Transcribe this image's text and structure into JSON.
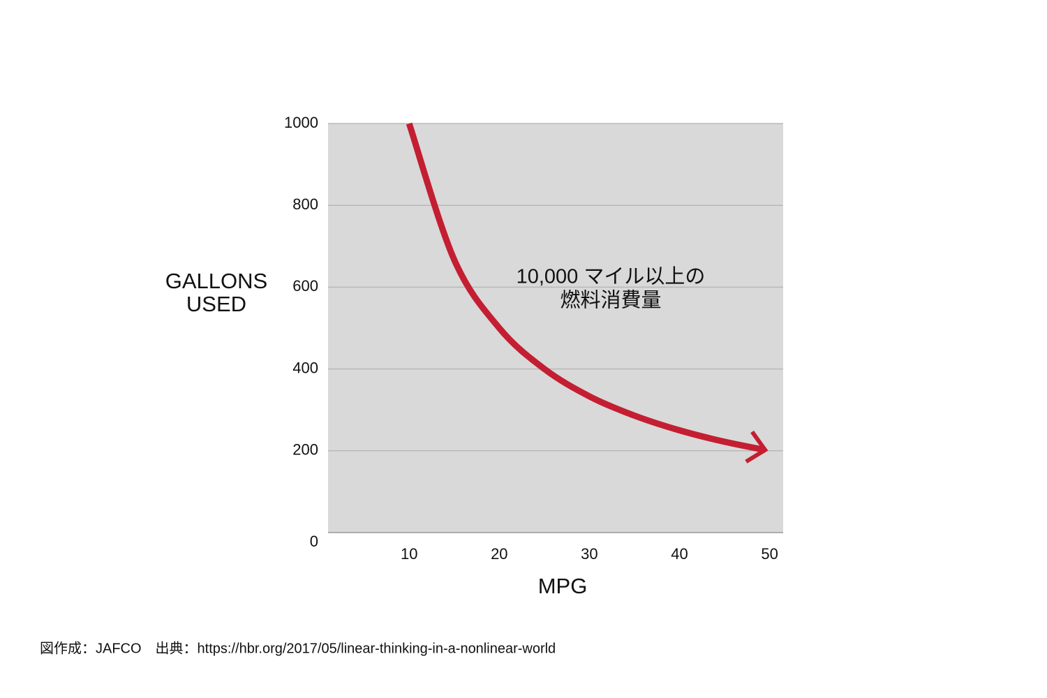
{
  "chart_data": {
    "type": "line",
    "x_label": "MPG",
    "y_label": [
      "GALLONS",
      "USED"
    ],
    "annotation": [
      "10,000 マイル以上の",
      "燃料消費量"
    ],
    "source": "図作成：JAFCO　出典：https://hbr.org/2017/05/linear-thinking-in-a-nonlinear-world",
    "x": [
      10,
      15,
      20,
      25,
      30,
      35,
      40,
      45,
      49.5
    ],
    "series": [
      {
        "color": "#c41e32",
        "values": [
          1000,
          667,
          500,
          400,
          333,
          286,
          250,
          222,
          202
        ]
      }
    ],
    "xlim": [
      1,
      51.5
    ],
    "xticks": [
      10,
      20,
      30,
      40,
      50
    ],
    "ylim": [
      0,
      1000
    ],
    "yticks": [
      0,
      200,
      400,
      600,
      800,
      1000
    ],
    "grid": true
  }
}
